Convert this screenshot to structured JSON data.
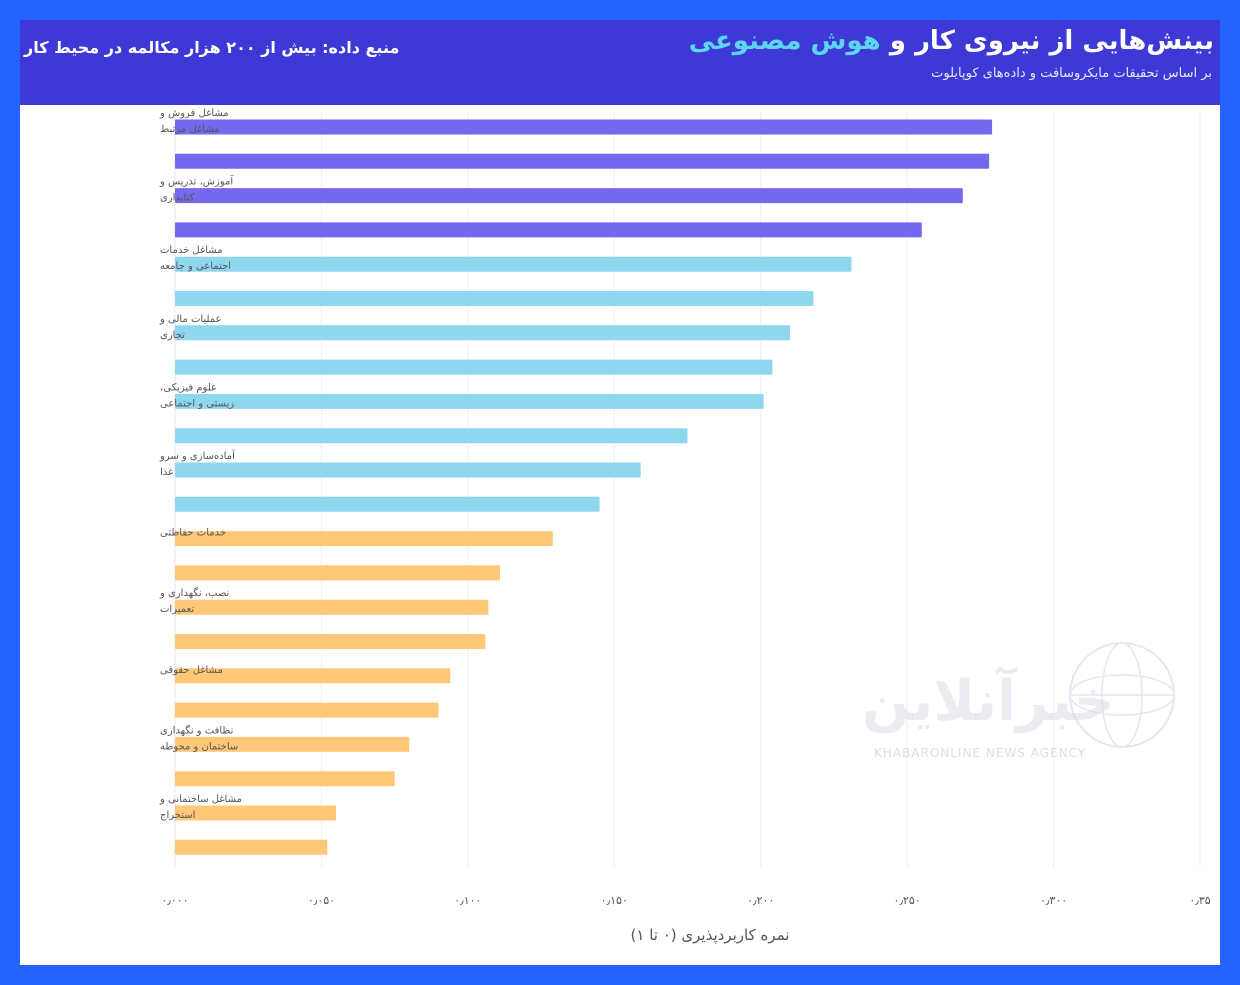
{
  "header": {
    "title_main": "بینش‌هایی از نیروی کار و",
    "title_accent": "هوش مصنوعی",
    "subtitle": "بر اساس تحقیقات مایکروسافت و داده‌های کوپایلوت",
    "source": "منبع داده: بیش از ۲۰۰ هزار مکالمه در محیط کار"
  },
  "watermark": {
    "logo_text": "خبرآنلاین",
    "agency_text": "KHABARONLINE NEWS AGENCY"
  },
  "colors": {
    "background": "#2563ff",
    "header": "#3d38d6",
    "accent": "#5cd6f0",
    "purple_bars": "#7468ee",
    "blue_bars": "#8fd6ef",
    "orange_bars": "#ffc878"
  },
  "chart_data": {
    "type": "bar",
    "orientation": "horizontal",
    "xlabel": "نمره کاربردپذیری (۰ تا ۱)",
    "xlim": [
      0,
      0.35
    ],
    "x_ticks": [
      0,
      0.05,
      0.1,
      0.15,
      0.2,
      0.25,
      0.3,
      0.35
    ],
    "x_tick_labels": [
      "۰٫۰۰۰",
      "۰٫۰۵۰",
      "۰٫۱۰۰",
      "۰٫۱۵۰",
      "۰٫۲۰۰",
      "۰٫۲۵۰",
      "۰٫۳۰۰",
      "۰٫۳۵"
    ],
    "grid": true,
    "category_labels": [
      [
        "مشاغل فروش و",
        "مشاغل مرتبط"
      ],
      [
        "آموزش، تدریس و",
        "کتابداری"
      ],
      [
        "مشاغل خدمات",
        "اجتماعی و جامعه"
      ],
      [
        "عملیات مالی و",
        "تجاری"
      ],
      [
        "علوم فیزیکی،",
        "زیستی و اجتماعی"
      ],
      [
        "آماده‌سازی و سرو",
        "غذا"
      ],
      [
        "خدمات حفاظتی"
      ],
      [
        "نصب، نگهداری و",
        "تعمیرات"
      ],
      [
        "مشاغل حقوقی"
      ],
      [
        "نظافت و نگهداری",
        "ساختمان و محوطه"
      ],
      [
        "مشاغل ساختمانی و",
        "استخراج"
      ]
    ],
    "bars": [
      {
        "value": 0.279,
        "group": "purple"
      },
      {
        "value": 0.278,
        "group": "purple"
      },
      {
        "value": 0.269,
        "group": "purple"
      },
      {
        "value": 0.255,
        "group": "purple"
      },
      {
        "value": 0.231,
        "group": "blue"
      },
      {
        "value": 0.218,
        "group": "blue"
      },
      {
        "value": 0.21,
        "group": "blue"
      },
      {
        "value": 0.204,
        "group": "blue"
      },
      {
        "value": 0.201,
        "group": "blue"
      },
      {
        "value": 0.175,
        "group": "blue"
      },
      {
        "value": 0.159,
        "group": "blue"
      },
      {
        "value": 0.145,
        "group": "blue"
      },
      {
        "value": 0.129,
        "group": "orange"
      },
      {
        "value": 0.111,
        "group": "orange"
      },
      {
        "value": 0.107,
        "group": "orange"
      },
      {
        "value": 0.106,
        "group": "orange"
      },
      {
        "value": 0.094,
        "group": "orange"
      },
      {
        "value": 0.09,
        "group": "orange"
      },
      {
        "value": 0.08,
        "group": "orange"
      },
      {
        "value": 0.075,
        "group": "orange"
      },
      {
        "value": 0.055,
        "group": "orange"
      },
      {
        "value": 0.052,
        "group": "orange"
      }
    ]
  }
}
